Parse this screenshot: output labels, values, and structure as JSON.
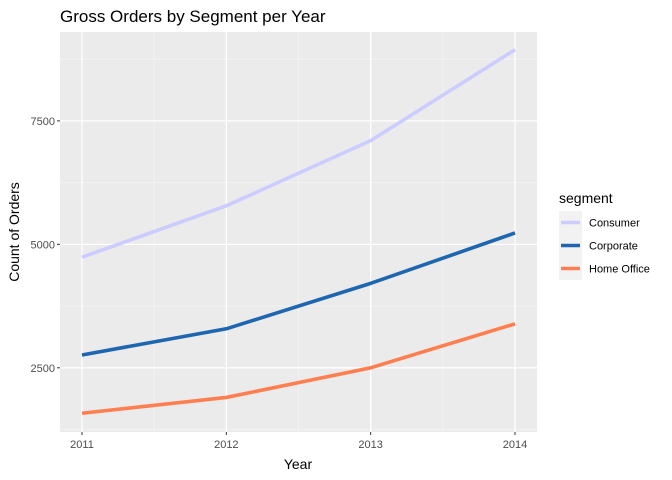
{
  "chart_data": {
    "type": "line",
    "title": "Gross Orders by Segment per Year",
    "xlabel": "Year",
    "ylabel": "Count of Orders",
    "categories": [
      "2011",
      "2012",
      "2013",
      "2014"
    ],
    "y_ticks": [
      "2500",
      "5000",
      "7500"
    ],
    "ylim": [
      1200,
      9300
    ],
    "grid": true,
    "legend": {
      "title": "segment",
      "position": "right"
    },
    "series": [
      {
        "name": "Consumer",
        "color": "#ccccff",
        "values": [
          4740,
          5780,
          7100,
          8940
        ]
      },
      {
        "name": "Corporate",
        "color": "#1f66b1",
        "values": [
          2760,
          3290,
          4210,
          5230
        ]
      },
      {
        "name": "Home Office",
        "color": "#ff7f50",
        "values": [
          1580,
          1900,
          2500,
          3390
        ]
      }
    ]
  }
}
